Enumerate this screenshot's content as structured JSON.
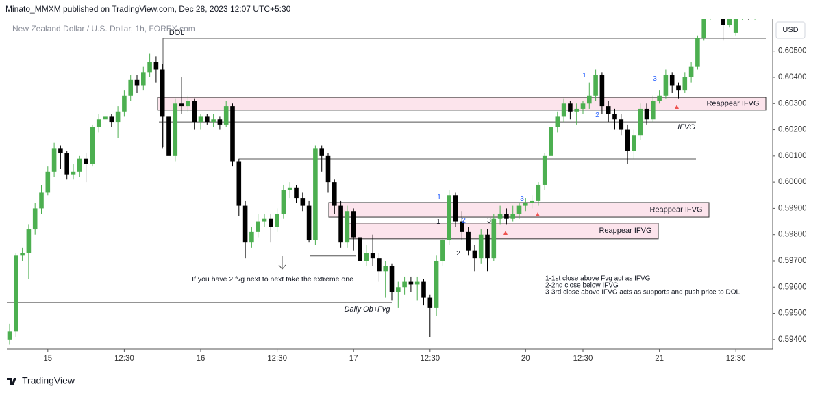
{
  "header": {
    "title": "Minato_MMXM published on TradingView.com, Dec 28, 2023 12:07 UTC+5:30",
    "logo": "TradingView"
  },
  "chart_data": {
    "type": "candlestick",
    "symbol": "New Zealand Dollar / U.S. Dollar, 1h, FOREX.com",
    "currency": "USD",
    "up_color": "#4caf50",
    "down_color": "#000000",
    "candles": {
      "open": [
        0.594,
        0.5943,
        0.5972,
        0.5973,
        0.5982,
        0.599,
        0.5996,
        0.6004,
        0.6013,
        0.6011,
        0.6003,
        0.6004,
        0.6009,
        0.6007,
        0.6021,
        0.6024,
        0.6025,
        0.6023,
        0.6027,
        0.6033,
        0.6039,
        0.6037,
        0.6042,
        0.6046,
        0.6043,
        0.6025,
        0.601,
        0.603,
        0.6029,
        0.6031,
        0.6023,
        0.6025,
        0.6023,
        0.6024,
        0.6022,
        0.6029,
        0.6008,
        0.5991,
        0.5977,
        0.5981,
        0.5985,
        0.5986,
        0.5983,
        0.5988,
        0.5997,
        0.5998,
        0.5994,
        0.5991,
        0.5978,
        0.6013,
        0.601,
        0.6,
        0.5991,
        0.5977,
        0.5989,
        0.5979,
        0.597,
        0.5973,
        0.5971,
        0.5966,
        0.5968,
        0.5958,
        0.596,
        0.5962,
        0.5961,
        0.5962,
        0.5956,
        0.5952,
        0.597,
        0.5978,
        0.5995,
        0.5985,
        0.5981,
        0.5974,
        0.5971,
        0.598,
        0.5971,
        0.5986,
        0.5988,
        0.5986,
        0.5988,
        0.5991,
        0.5992,
        0.5993,
        0.5999,
        0.601,
        0.6021,
        0.6025,
        0.603,
        0.6027,
        0.6028,
        0.603,
        0.6033,
        0.6041,
        0.6029,
        0.6026,
        0.6024,
        0.602,
        0.6012,
        0.6018,
        0.6028,
        0.6024,
        0.6031,
        0.6033,
        0.6041,
        0.6037,
        0.6035,
        0.604,
        0.6044,
        0.6055,
        0.6063,
        0.6066,
        0.6064,
        0.606,
        0.6057,
        0.6063,
        0.6065,
        0.6063
      ],
      "high": [
        0.5946,
        0.5973,
        0.5975,
        0.5984,
        0.5992,
        0.5999,
        0.6006,
        0.6015,
        0.6014,
        0.6012,
        0.6007,
        0.601,
        0.6011,
        0.6022,
        0.6026,
        0.6028,
        0.6026,
        0.6029,
        0.6035,
        0.6041,
        0.6041,
        0.6044,
        0.6049,
        0.6048,
        0.6045,
        0.6027,
        0.6032,
        0.604,
        0.6033,
        0.6032,
        0.6026,
        0.6026,
        0.6026,
        0.6025,
        0.6031,
        0.603,
        0.6009,
        0.5993,
        0.5983,
        0.5988,
        0.5988,
        0.5988,
        0.599,
        0.5999,
        0.6,
        0.5999,
        0.5996,
        0.5993,
        0.6014,
        0.6014,
        0.6011,
        0.6001,
        0.5993,
        0.5991,
        0.599,
        0.5981,
        0.5976,
        0.598,
        0.5973,
        0.597,
        0.5969,
        0.5962,
        0.5964,
        0.5964,
        0.5964,
        0.5963,
        0.5957,
        0.5972,
        0.5979,
        0.5997,
        0.5996,
        0.5989,
        0.5983,
        0.5976,
        0.5982,
        0.5982,
        0.5988,
        0.5991,
        0.599,
        0.5991,
        0.5992,
        0.5994,
        0.5995,
        0.6,
        0.6011,
        0.6022,
        0.6027,
        0.6032,
        0.6031,
        0.603,
        0.6031,
        0.6038,
        0.6043,
        0.6042,
        0.6031,
        0.6028,
        0.6026,
        0.6022,
        0.602,
        0.603,
        0.603,
        0.6033,
        0.6035,
        0.6043,
        0.6042,
        0.6038,
        0.6042,
        0.6046,
        0.6056,
        0.6064,
        0.6068,
        0.6067,
        0.6065,
        0.6066,
        0.6065,
        0.6067,
        0.6066,
        0.6065
      ],
      "low": [
        0.5938,
        0.5941,
        0.597,
        0.5963,
        0.598,
        0.5988,
        0.5995,
        0.6002,
        0.6005,
        0.6001,
        0.6001,
        0.6002,
        0.6,
        0.6006,
        0.6019,
        0.6018,
        0.6021,
        0.6017,
        0.6025,
        0.6031,
        0.6034,
        0.6035,
        0.604,
        0.6038,
        0.6013,
        0.6005,
        0.6008,
        0.6026,
        0.6027,
        0.602,
        0.602,
        0.6022,
        0.6021,
        0.602,
        0.6021,
        0.6006,
        0.5987,
        0.5971,
        0.5975,
        0.5979,
        0.5983,
        0.5977,
        0.5981,
        0.5986,
        0.5994,
        0.5992,
        0.5989,
        0.5977,
        0.5976,
        0.6004,
        0.5996,
        0.5988,
        0.5975,
        0.5975,
        0.5974,
        0.5967,
        0.5968,
        0.5968,
        0.5962,
        0.5956,
        0.5955,
        0.5952,
        0.5957,
        0.5958,
        0.5955,
        0.5953,
        0.5941,
        0.5949,
        0.5968,
        0.5976,
        0.5983,
        0.5978,
        0.5972,
        0.5966,
        0.5969,
        0.5966,
        0.597,
        0.5984,
        0.5984,
        0.5985,
        0.5986,
        0.5989,
        0.599,
        0.5991,
        0.5997,
        0.6008,
        0.6019,
        0.6023,
        0.6024,
        0.6022,
        0.6026,
        0.6028,
        0.6031,
        0.6026,
        0.6023,
        0.602,
        0.6018,
        0.6007,
        0.6009,
        0.6016,
        0.6022,
        0.6023,
        0.603,
        0.6032,
        0.6034,
        0.6032,
        0.6034,
        0.6038,
        0.6043,
        0.6054,
        0.6062,
        0.6063,
        0.6054,
        0.6059,
        0.6056,
        0.6062,
        0.6062,
        0.6062
      ],
      "close": [
        0.5943,
        0.5972,
        0.5973,
        0.5982,
        0.599,
        0.5996,
        0.6004,
        0.6013,
        0.6011,
        0.6003,
        0.6004,
        0.6009,
        0.6007,
        0.6021,
        0.6024,
        0.6025,
        0.6023,
        0.6027,
        0.6033,
        0.6039,
        0.6037,
        0.6042,
        0.6046,
        0.6043,
        0.6025,
        0.601,
        0.603,
        0.6029,
        0.6031,
        0.6023,
        0.6025,
        0.6023,
        0.6024,
        0.6022,
        0.6029,
        0.6008,
        0.5991,
        0.5977,
        0.5981,
        0.5985,
        0.5986,
        0.5983,
        0.5988,
        0.5997,
        0.5998,
        0.5994,
        0.5991,
        0.5978,
        0.6013,
        0.601,
        0.6,
        0.5991,
        0.5977,
        0.5989,
        0.5979,
        0.597,
        0.5973,
        0.5971,
        0.5966,
        0.5968,
        0.5958,
        0.596,
        0.5962,
        0.5961,
        0.5962,
        0.5956,
        0.5952,
        0.597,
        0.5978,
        0.5995,
        0.5985,
        0.5981,
        0.5974,
        0.5971,
        0.598,
        0.5971,
        0.5986,
        0.5988,
        0.5986,
        0.5988,
        0.5991,
        0.5992,
        0.5993,
        0.5999,
        0.601,
        0.6021,
        0.6025,
        0.603,
        0.6027,
        0.6028,
        0.603,
        0.6033,
        0.6041,
        0.6029,
        0.6026,
        0.6024,
        0.602,
        0.6012,
        0.6018,
        0.6028,
        0.6024,
        0.6031,
        0.6033,
        0.6041,
        0.6037,
        0.6035,
        0.604,
        0.6044,
        0.6055,
        0.6063,
        0.6066,
        0.6065,
        0.606,
        0.6064,
        0.6063,
        0.6065,
        0.6063,
        0.6064
      ]
    },
    "ylim": [
      0.59363,
      0.60622
    ],
    "yticks": [
      {
        "value": 0.594,
        "label": "0.59400"
      },
      {
        "value": 0.595,
        "label": "0.59500"
      },
      {
        "value": 0.596,
        "label": "0.59600"
      },
      {
        "value": 0.597,
        "label": "0.59700"
      },
      {
        "value": 0.598,
        "label": "0.59800"
      },
      {
        "value": 0.599,
        "label": "0.59900"
      },
      {
        "value": 0.6,
        "label": "0.60000"
      },
      {
        "value": 0.601,
        "label": "0.60100"
      },
      {
        "value": 0.602,
        "label": "0.60200"
      },
      {
        "value": 0.603,
        "label": "0.60300"
      },
      {
        "value": 0.604,
        "label": "0.60400"
      },
      {
        "value": 0.605,
        "label": "0.60500"
      }
    ],
    "xticks": [
      {
        "value": 6,
        "label": "15"
      },
      {
        "value": 18,
        "label": "12:30"
      },
      {
        "value": 30,
        "label": "16"
      },
      {
        "value": 42,
        "label": "12:30"
      },
      {
        "value": 54,
        "label": "17"
      },
      {
        "value": 66,
        "label": "12:30"
      },
      {
        "value": 81,
        "label": "20"
      },
      {
        "value": 90,
        "label": "12:30"
      },
      {
        "value": 102,
        "label": "21"
      },
      {
        "value": 114,
        "label": "12:30"
      }
    ],
    "zones": [
      {
        "label": "Reappear IFVG",
        "top": 0.60324,
        "bottom": 0.60275
      },
      {
        "label": "Reappear IFVG",
        "top": 0.59922,
        "bottom": 0.59867
      },
      {
        "label": "Reappear IFVG",
        "top": 0.59844,
        "bottom": 0.59784
      }
    ],
    "levels": [
      {
        "label": "DOL",
        "value": 0.60549
      },
      {
        "label": "IFVG",
        "value": 0.6023
      },
      {
        "value": 0.60089
      },
      {
        "value": 0.59719
      },
      {
        "label": "Daily Ob+Fvg",
        "value": 0.59541
      }
    ],
    "annotations": [
      {
        "text": "1"
      },
      {
        "text": "2"
      },
      {
        "text": "3"
      },
      {
        "text": "1"
      },
      {
        "text": "2"
      },
      {
        "text": "3"
      },
      {
        "text": "1"
      },
      {
        "text": "2"
      },
      {
        "text": "3"
      },
      {
        "text": "If you have 2 fvg next to next take the extreme one"
      }
    ],
    "notes": [
      "1-1st close above Fvg act as IFVG",
      "2-2nd close below IFVG",
      "3-3rd close above IFVG acts as supports and push price to DOL"
    ]
  }
}
